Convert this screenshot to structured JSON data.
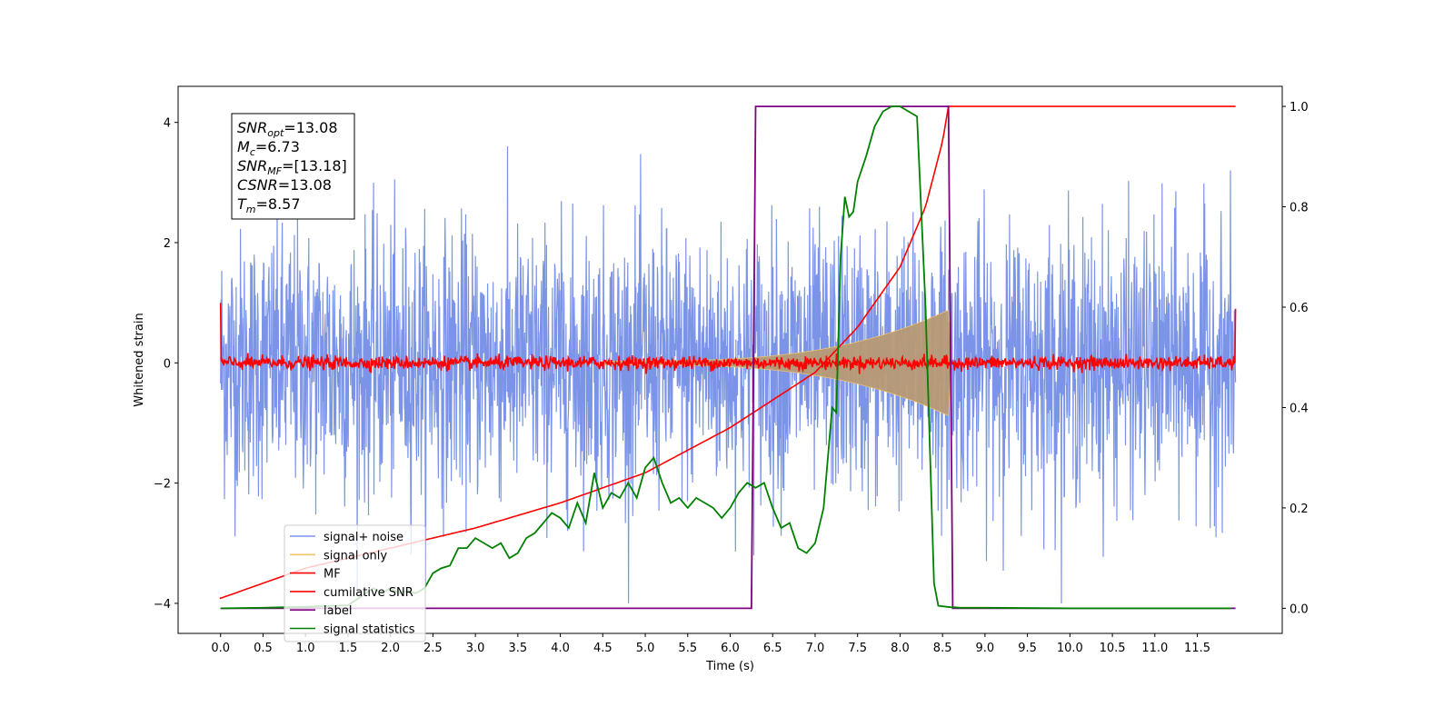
{
  "chart_data": {
    "type": "line",
    "xlabel": "Time (s)",
    "ylabel": "Whitened strain",
    "xlim": [
      -0.5,
      12.5
    ],
    "ylim": [
      -4.5,
      4.6
    ],
    "y2lim": [
      -0.05,
      1.04
    ],
    "x_ticks": [
      "0.0",
      "0.5",
      "1.0",
      "1.5",
      "2.0",
      "2.5",
      "3.0",
      "3.5",
      "4.0",
      "4.5",
      "5.0",
      "5.5",
      "6.0",
      "6.5",
      "7.0",
      "7.5",
      "8.0",
      "8.5",
      "9.0",
      "9.5",
      "10.0",
      "10.5",
      "11.0",
      "11.5"
    ],
    "y_ticks": [
      "4",
      "2",
      "0",
      "−2",
      "−4"
    ],
    "y2_ticks": [
      "1.0",
      "0.8",
      "0.6",
      "0.4",
      "0.2",
      "0.0"
    ],
    "grid": false,
    "legend_position": "lower-left",
    "info_box": {
      "snr_opt": "=13.08",
      "mc": "=6.73",
      "snr_mf": "=[13.18]",
      "csnr": "=13.08",
      "tm": "=8.57"
    },
    "series": [
      {
        "name": "signal+ noise",
        "color": "#7b94e8",
        "axis": "left",
        "description_values": {
          "amplitude_range": [
            -4.0,
            4.1
          ]
        }
      },
      {
        "name": "signal only",
        "color": "#f2c36b",
        "axis": "left",
        "chirp_start": 4.5,
        "chirp_end": 8.57,
        "peak_amplitude": 0.85
      },
      {
        "name": "MF",
        "color": "#ff0000",
        "axis": "left",
        "noise_level": 0.1,
        "edge_value": 1.0
      },
      {
        "name": "cumilative SNR",
        "color": "#ff0000",
        "axis": "right",
        "x": [
          0.0,
          1.0,
          2.0,
          3.0,
          4.0,
          5.0,
          6.0,
          7.0,
          7.5,
          8.0,
          8.3,
          8.5,
          8.57,
          11.95
        ],
        "y": [
          0.02,
          0.08,
          0.12,
          0.16,
          0.21,
          0.27,
          0.36,
          0.47,
          0.56,
          0.68,
          0.8,
          0.93,
          1.0,
          1.0
        ]
      },
      {
        "name": "label",
        "color": "#800080",
        "axis": "right",
        "x": [
          0.0,
          6.25,
          6.3,
          8.57,
          8.62,
          11.95
        ],
        "y": [
          0.0,
          0.0,
          1.0,
          1.0,
          0.0,
          0.0
        ]
      },
      {
        "name": "signal statistics",
        "color": "#008000",
        "axis": "right",
        "x": [
          0.0,
          0.5,
          1.0,
          1.5,
          1.8,
          1.9,
          2.0,
          2.1,
          2.2,
          2.3,
          2.4,
          2.5,
          2.6,
          2.7,
          2.8,
          2.9,
          3.0,
          3.1,
          3.2,
          3.3,
          3.4,
          3.5,
          3.6,
          3.7,
          3.8,
          3.9,
          4.0,
          4.1,
          4.2,
          4.3,
          4.4,
          4.5,
          4.6,
          4.7,
          4.8,
          4.9,
          5.0,
          5.1,
          5.2,
          5.3,
          5.4,
          5.5,
          5.6,
          5.7,
          5.8,
          5.9,
          6.0,
          6.1,
          6.2,
          6.3,
          6.4,
          6.5,
          6.6,
          6.7,
          6.8,
          6.9,
          7.0,
          7.1,
          7.2,
          7.25,
          7.3,
          7.35,
          7.4,
          7.45,
          7.5,
          7.6,
          7.7,
          7.8,
          7.9,
          8.0,
          8.1,
          8.2,
          8.3,
          8.4,
          8.45,
          8.5,
          8.55,
          8.6,
          8.65,
          8.7,
          9.0,
          10.0,
          11.0,
          11.9
        ],
        "y": [
          0.0,
          0.001,
          0.003,
          0.006,
          0.04,
          0.03,
          0.04,
          0.03,
          0.035,
          0.03,
          0.04,
          0.07,
          0.08,
          0.085,
          0.12,
          0.12,
          0.14,
          0.13,
          0.12,
          0.13,
          0.1,
          0.11,
          0.14,
          0.15,
          0.17,
          0.19,
          0.18,
          0.16,
          0.21,
          0.17,
          0.27,
          0.2,
          0.23,
          0.22,
          0.25,
          0.22,
          0.28,
          0.3,
          0.25,
          0.21,
          0.22,
          0.2,
          0.22,
          0.21,
          0.2,
          0.18,
          0.2,
          0.23,
          0.25,
          0.24,
          0.25,
          0.2,
          0.16,
          0.17,
          0.12,
          0.11,
          0.13,
          0.2,
          0.4,
          0.39,
          0.7,
          0.82,
          0.78,
          0.79,
          0.85,
          0.9,
          0.96,
          0.99,
          1.0,
          1.0,
          0.99,
          0.98,
          0.6,
          0.05,
          0.005,
          0.004,
          0.003,
          0.002,
          0.002,
          0.001,
          0.001,
          0.0,
          0.0,
          0.0
        ]
      }
    ]
  }
}
